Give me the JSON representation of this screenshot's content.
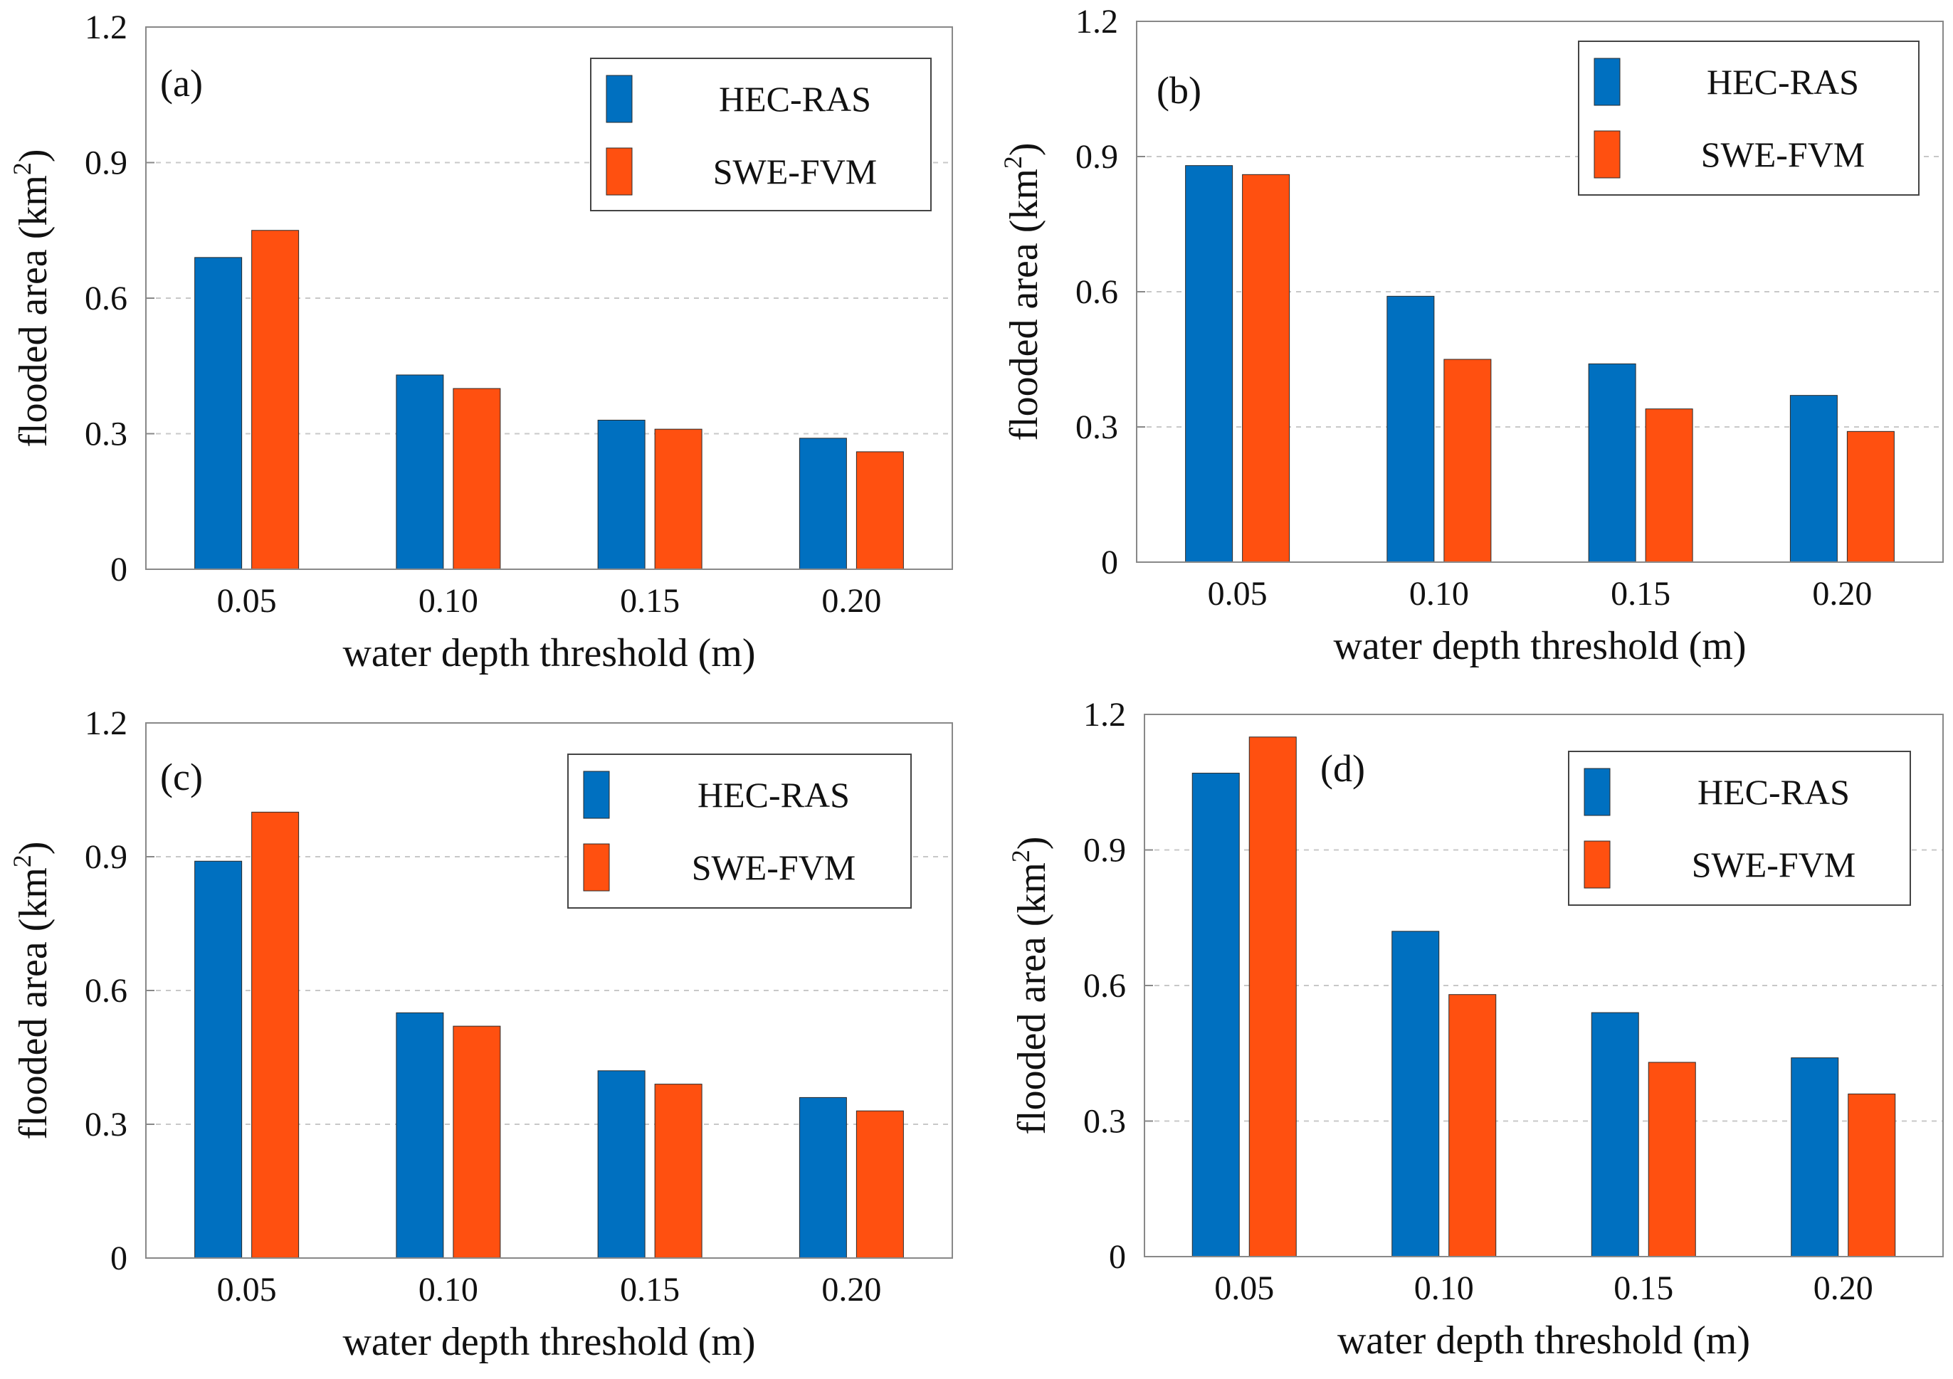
{
  "figure": {
    "colors": {
      "HEC-RAS": "#0070c0",
      "SWE-FVM": "#ff5010",
      "grid": "#c8c8c8",
      "axis": "#888888"
    }
  },
  "chart_data": [
    {
      "type": "bar",
      "panel_label": "(a)",
      "categories": [
        "0.05",
        "0.10",
        "0.15",
        "0.20"
      ],
      "series": [
        {
          "name": "HEC-RAS",
          "values": [
            0.69,
            0.43,
            0.33,
            0.29
          ]
        },
        {
          "name": "SWE-FVM",
          "values": [
            0.75,
            0.4,
            0.31,
            0.26
          ]
        }
      ],
      "xlabel": "water depth threshold (m)",
      "ylabel": "flooded area (km",
      "ylabel_sup": "2",
      "ylabel_end": ")",
      "ylim": [
        0,
        1.2
      ],
      "yticks": [
        "0",
        "0.3",
        "0.6",
        "0.9",
        "1.2"
      ],
      "grid": true,
      "legend_position": "top-right"
    },
    {
      "type": "bar",
      "panel_label": "(b)",
      "categories": [
        "0.05",
        "0.10",
        "0.15",
        "0.20"
      ],
      "series": [
        {
          "name": "HEC-RAS",
          "values": [
            0.88,
            0.59,
            0.44,
            0.37
          ]
        },
        {
          "name": "SWE-FVM",
          "values": [
            0.86,
            0.45,
            0.34,
            0.29
          ]
        }
      ],
      "xlabel": "water depth threshold (m)",
      "ylabel": "flooded area (km",
      "ylabel_sup": "2",
      "ylabel_end": ")",
      "ylim": [
        0,
        1.2
      ],
      "yticks": [
        "0",
        "0.3",
        "0.6",
        "0.9",
        "1.2"
      ],
      "grid": true,
      "legend_position": "top-right"
    },
    {
      "type": "bar",
      "panel_label": "(c)",
      "categories": [
        "0.05",
        "0.10",
        "0.15",
        "0.20"
      ],
      "series": [
        {
          "name": "HEC-RAS",
          "values": [
            0.89,
            0.55,
            0.42,
            0.36
          ]
        },
        {
          "name": "SWE-FVM",
          "values": [
            1.0,
            0.52,
            0.39,
            0.33
          ]
        }
      ],
      "xlabel": "water depth threshold (m)",
      "ylabel": "flooded area (km",
      "ylabel_sup": "2",
      "ylabel_end": ")",
      "ylim": [
        0,
        1.2
      ],
      "yticks": [
        "0",
        "0.3",
        "0.6",
        "0.9",
        "1.2"
      ],
      "grid": true,
      "legend_position": "top-right"
    },
    {
      "type": "bar",
      "panel_label": "(d)",
      "categories": [
        "0.05",
        "0.10",
        "0.15",
        "0.20"
      ],
      "series": [
        {
          "name": "HEC-RAS",
          "values": [
            1.07,
            0.72,
            0.54,
            0.44
          ]
        },
        {
          "name": "SWE-FVM",
          "values": [
            1.15,
            0.58,
            0.43,
            0.36
          ]
        }
      ],
      "xlabel": "water depth threshold (m)",
      "ylabel": "flooded area (km",
      "ylabel_sup": "2",
      "ylabel_end": ")",
      "ylim": [
        0,
        1.2
      ],
      "yticks": [
        "0",
        "0.3",
        "0.6",
        "0.9",
        "1.2"
      ],
      "grid": true,
      "legend_position": "top-right"
    }
  ]
}
